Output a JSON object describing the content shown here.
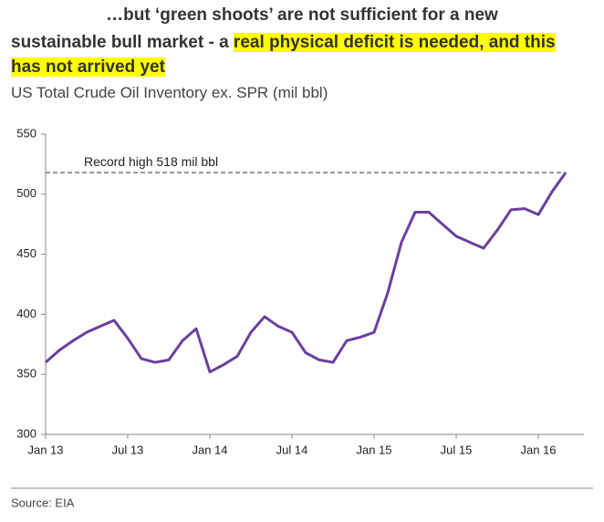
{
  "chart_data": {
    "type": "line",
    "headline": {
      "line1": "…but ‘green shoots’ are not sufficient for a new",
      "line2": "sustainable bull market - a ",
      "line2_highlight": "real physical deficit is needed, and this",
      "line3_highlight": "has not arrived yet"
    },
    "title": "US Total Crude Oil Inventory ex. SPR (mil bbl)",
    "annotation": "Record high 518  mil bbl",
    "reference_line": 518,
    "source": "Source: EIA",
    "categories": [
      "Jan 13",
      null,
      null,
      null,
      null,
      null,
      "Jul 13",
      null,
      null,
      null,
      null,
      null,
      "Jan 14",
      null,
      null,
      null,
      null,
      null,
      "Jul 14",
      null,
      null,
      null,
      null,
      null,
      "Jan 15",
      null,
      null,
      null,
      null,
      null,
      "Jul 15",
      null,
      null,
      null,
      null,
      null,
      "Jan 16",
      null,
      null
    ],
    "series": [
      {
        "name": "US Total Crude Oil Inventory ex. SPR",
        "color": "#6b3fa0",
        "values": [
          360,
          370,
          378,
          385,
          390,
          395,
          380,
          363,
          360,
          362,
          378,
          388,
          352,
          358,
          365,
          385,
          398,
          390,
          385,
          368,
          362,
          360,
          378,
          381,
          385,
          418,
          460,
          485,
          485,
          475,
          465,
          460,
          455,
          470,
          487,
          488,
          483,
          502,
          518
        ]
      }
    ],
    "ylim": [
      300,
      550
    ],
    "yticks": [
      300,
      350,
      400,
      450,
      500,
      550
    ],
    "grid": false
  }
}
